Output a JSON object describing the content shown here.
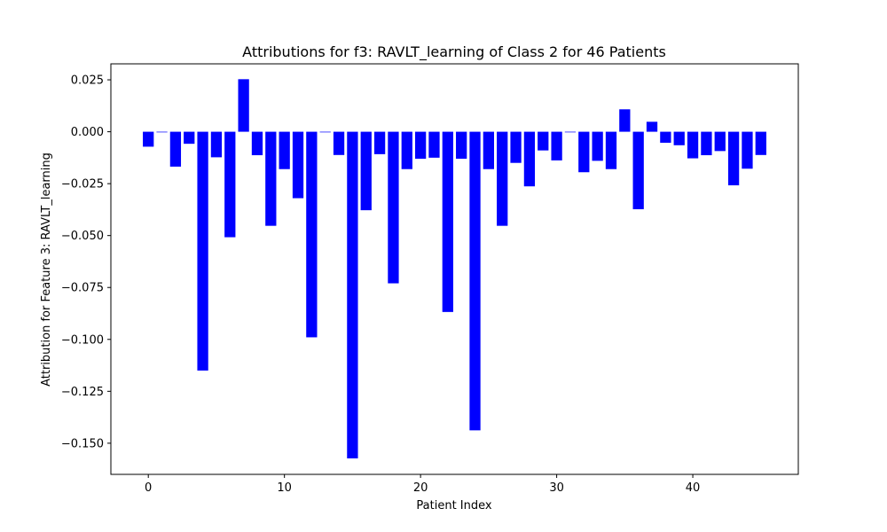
{
  "chart_data": {
    "type": "bar",
    "title": "Attributions for f3: RAVLT_learning of Class 2 for 46 Patients",
    "xlabel": "Patient Index",
    "ylabel": "Attribution for Feature 3: RAVLT_learning",
    "bar_color": "#0000ff",
    "xlim": [
      -2.75,
      47.75
    ],
    "ylim": [
      -0.165,
      0.0327
    ],
    "xticks": [
      0,
      10,
      20,
      30,
      40
    ],
    "xtick_labels": [
      "0",
      "10",
      "20",
      "30",
      "40"
    ],
    "yticks": [
      0.025,
      0.0,
      -0.025,
      -0.05,
      -0.075,
      -0.1,
      -0.125,
      -0.15
    ],
    "ytick_labels": [
      "0.025",
      "0.000",
      "−0.025",
      "−0.050",
      "−0.075",
      "−0.100",
      "−0.125",
      "−0.150"
    ],
    "grid": false,
    "x": [
      0,
      1,
      2,
      3,
      4,
      5,
      6,
      7,
      8,
      9,
      10,
      11,
      12,
      13,
      14,
      15,
      16,
      17,
      18,
      19,
      20,
      21,
      22,
      23,
      24,
      25,
      26,
      27,
      28,
      29,
      30,
      31,
      32,
      33,
      34,
      35,
      36,
      37,
      38,
      39,
      40,
      41,
      42,
      43,
      44,
      45
    ],
    "values": [
      -0.0072,
      -0.0003,
      -0.0168,
      -0.0058,
      -0.115,
      -0.0123,
      -0.0508,
      0.0253,
      -0.0113,
      -0.0453,
      -0.018,
      -0.032,
      -0.099,
      -0.0003,
      -0.0112,
      -0.1573,
      -0.0378,
      -0.0108,
      -0.073,
      -0.018,
      -0.013,
      -0.0125,
      -0.0868,
      -0.013,
      -0.1438,
      -0.018,
      -0.0453,
      -0.015,
      -0.0263,
      -0.009,
      -0.0138,
      -0.0003,
      -0.0195,
      -0.014,
      -0.018,
      0.0108,
      -0.0373,
      0.0048,
      -0.0053,
      -0.0065,
      -0.0128,
      -0.0113,
      -0.0093,
      -0.0258,
      -0.0178,
      -0.0112
    ]
  }
}
